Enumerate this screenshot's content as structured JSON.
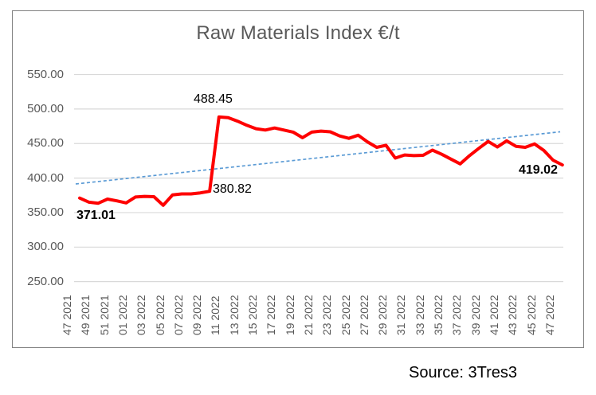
{
  "chart": {
    "title": "Raw Materials Index €/t",
    "point_labels": [
      {
        "value": "371.01",
        "week": "47 2021",
        "bold": true,
        "position": "below-first-point"
      },
      {
        "value": "488.45",
        "week": "10 2022",
        "bold": false,
        "position": "above-peak"
      },
      {
        "value": "380.82",
        "week": "09 2022",
        "bold": false,
        "position": "below-pre-spike-point"
      },
      {
        "value": "419.02",
        "week": "47 2022",
        "bold": true,
        "position": "below-last-point"
      }
    ]
  },
  "source": {
    "text": "Source: 3Tres3"
  },
  "chart_data": {
    "type": "line",
    "title": "Raw Materials Index €/t",
    "xlabel": "",
    "ylabel": "",
    "ylim": [
      250,
      550
    ],
    "grid": true,
    "legend": false,
    "x": [
      "47 2021",
      "48 2021",
      "49 2021",
      "50 2021",
      "51 2021",
      "52 2021",
      "01 2022",
      "02 2022",
      "03 2022",
      "04 2022",
      "05 2022",
      "06 2022",
      "07 2022",
      "08 2022",
      "09 2022",
      "10 2022",
      "11 2022",
      "12 2022",
      "13 2022",
      "14 2022",
      "15 2022",
      "16 2022",
      "17 2022",
      "18 2022",
      "19 2022",
      "20 2022",
      "21 2022",
      "22 2022",
      "23 2022",
      "24 2022",
      "25 2022",
      "26 2022",
      "27 2022",
      "28 2022",
      "29 2022",
      "30 2022",
      "31 2022",
      "32 2022",
      "33 2022",
      "34 2022",
      "35 2022",
      "36 2022",
      "37 2022",
      "38 2022",
      "39 2022",
      "40 2022",
      "41 2022",
      "42 2022",
      "43 2022",
      "44 2022",
      "45 2022",
      "46 2022",
      "47 2022"
    ],
    "series": [
      {
        "name": "Raw Materials Index €/t",
        "color": "#FE0000",
        "values": [
          371.01,
          365,
          363.5,
          369.5,
          367,
          364,
          372.5,
          373.5,
          373,
          360.5,
          375.5,
          377,
          377,
          378.5,
          380.82,
          488.45,
          487.5,
          482.5,
          476.5,
          471.5,
          469.5,
          472.5,
          469.5,
          466.5,
          458.5,
          466.5,
          468,
          467,
          461,
          457.5,
          462,
          452.5,
          444.5,
          447.5,
          429,
          433.5,
          432.5,
          433,
          440.5,
          434.5,
          427.5,
          420.5,
          432.5,
          443,
          453,
          445,
          454,
          446,
          444.5,
          449.5,
          440,
          426,
          419.02
        ]
      }
    ],
    "trendline": {
      "start_value": 391.5,
      "end_value": 467,
      "color": "#5B9BD5",
      "style": "dashed"
    },
    "y_tick_labels": [
      "550.00",
      "500.00",
      "450.00",
      "400.00",
      "350.00",
      "300.00",
      "250.00"
    ],
    "y_tick_values": [
      550,
      500,
      450,
      400,
      350,
      300,
      250
    ],
    "x_tick_labels": [
      "47 2021",
      "49 2021",
      "51 2021",
      "01 2022",
      "03 2022",
      "05 2022",
      "07 2022",
      "09 2022",
      "11 2022",
      "13 2022",
      "15 2022",
      "17 2022",
      "19 2022",
      "21 2022",
      "23 2022",
      "25 2022",
      "27 2022",
      "29 2022",
      "31 2022",
      "33 2022",
      "35 2022",
      "37 2022",
      "39 2022",
      "41 2022",
      "43 2022",
      "45 2022",
      "47 2022"
    ],
    "colors": {
      "grid": "#D9D9D9",
      "axis_text": "#595959",
      "frame": "#828282"
    }
  }
}
